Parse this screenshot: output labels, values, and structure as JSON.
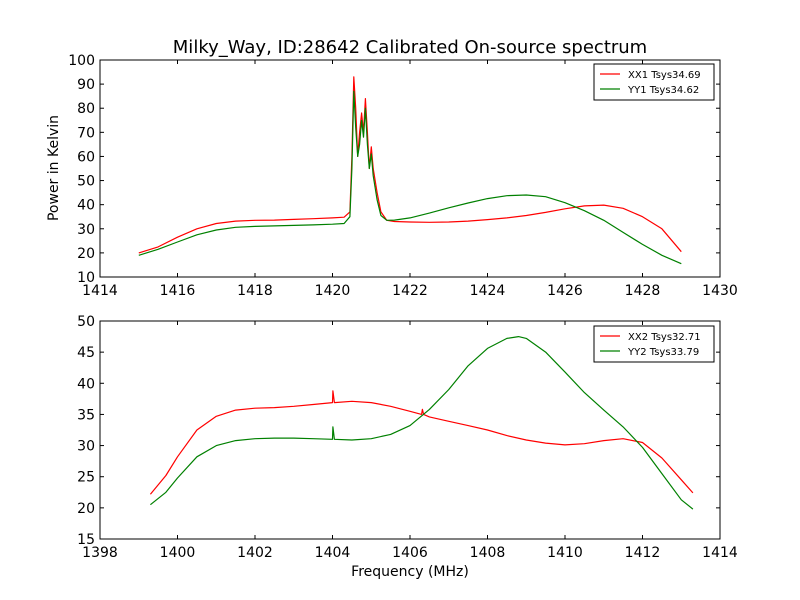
{
  "chart_data": [
    {
      "type": "line",
      "title": "Milky_Way, ID:28642 Calibrated On-source spectrum",
      "xlabel": "",
      "ylabel": "Power in Kelvin",
      "xlim": [
        1414,
        1430
      ],
      "ylim": [
        10,
        100
      ],
      "xticks": [
        1414,
        1416,
        1418,
        1420,
        1422,
        1424,
        1426,
        1428,
        1430
      ],
      "yticks": [
        10,
        20,
        30,
        40,
        50,
        60,
        70,
        80,
        90,
        100
      ],
      "grid": false,
      "legend_position": "top-right",
      "series": [
        {
          "name": "XX1 Tsys34.69",
          "color": "#ff0000",
          "points": [
            [
              1415.0,
              20.0
            ],
            [
              1415.5,
              22.5
            ],
            [
              1416.0,
              26.5
            ],
            [
              1416.5,
              30.0
            ],
            [
              1417.0,
              32.2
            ],
            [
              1417.5,
              33.2
            ],
            [
              1418.0,
              33.5
            ],
            [
              1418.5,
              33.6
            ],
            [
              1419.0,
              33.9
            ],
            [
              1419.5,
              34.2
            ],
            [
              1420.0,
              34.5
            ],
            [
              1420.3,
              34.8
            ],
            [
              1420.45,
              37.0
            ],
            [
              1420.5,
              60.0
            ],
            [
              1420.55,
              93.0
            ],
            [
              1420.6,
              80.0
            ],
            [
              1420.65,
              60.0
            ],
            [
              1420.7,
              70.0
            ],
            [
              1420.75,
              78.0
            ],
            [
              1420.8,
              70.0
            ],
            [
              1420.85,
              84.0
            ],
            [
              1420.9,
              70.0
            ],
            [
              1420.95,
              55.0
            ],
            [
              1421.0,
              64.0
            ],
            [
              1421.05,
              55.0
            ],
            [
              1421.15,
              45.0
            ],
            [
              1421.25,
              37.0
            ],
            [
              1421.4,
              33.5
            ],
            [
              1421.6,
              33.0
            ],
            [
              1422.0,
              32.8
            ],
            [
              1422.5,
              32.7
            ],
            [
              1423.0,
              32.8
            ],
            [
              1423.5,
              33.2
            ],
            [
              1424.0,
              33.8
            ],
            [
              1424.5,
              34.5
            ],
            [
              1425.0,
              35.5
            ],
            [
              1425.5,
              36.8
            ],
            [
              1426.0,
              38.3
            ],
            [
              1426.5,
              39.5
            ],
            [
              1427.0,
              39.8
            ],
            [
              1427.5,
              38.5
            ],
            [
              1428.0,
              35.0
            ],
            [
              1428.5,
              30.0
            ],
            [
              1429.0,
              20.5
            ]
          ]
        },
        {
          "name": "YY1 Tsys34.62",
          "color": "#008000",
          "points": [
            [
              1415.0,
              19.0
            ],
            [
              1415.5,
              21.5
            ],
            [
              1416.0,
              24.5
            ],
            [
              1416.5,
              27.5
            ],
            [
              1417.0,
              29.5
            ],
            [
              1417.5,
              30.6
            ],
            [
              1418.0,
              31.0
            ],
            [
              1418.5,
              31.2
            ],
            [
              1419.0,
              31.4
            ],
            [
              1419.5,
              31.6
            ],
            [
              1420.0,
              31.9
            ],
            [
              1420.3,
              32.2
            ],
            [
              1420.45,
              35.0
            ],
            [
              1420.5,
              55.0
            ],
            [
              1420.55,
              87.0
            ],
            [
              1420.6,
              72.0
            ],
            [
              1420.65,
              60.0
            ],
            [
              1420.7,
              65.0
            ],
            [
              1420.75,
              75.0
            ],
            [
              1420.8,
              68.0
            ],
            [
              1420.85,
              80.0
            ],
            [
              1420.9,
              65.0
            ],
            [
              1420.95,
              55.0
            ],
            [
              1421.0,
              61.0
            ],
            [
              1421.05,
              52.0
            ],
            [
              1421.15,
              42.0
            ],
            [
              1421.25,
              35.5
            ],
            [
              1421.4,
              33.5
            ],
            [
              1421.6,
              33.6
            ],
            [
              1422.0,
              34.5
            ],
            [
              1422.5,
              36.5
            ],
            [
              1423.0,
              38.7
            ],
            [
              1423.5,
              40.7
            ],
            [
              1424.0,
              42.5
            ],
            [
              1424.5,
              43.7
            ],
            [
              1425.0,
              44.0
            ],
            [
              1425.5,
              43.3
            ],
            [
              1426.0,
              40.8
            ],
            [
              1426.5,
              37.5
            ],
            [
              1427.0,
              33.5
            ],
            [
              1427.5,
              28.5
            ],
            [
              1428.0,
              23.5
            ],
            [
              1428.5,
              19.0
            ],
            [
              1429.0,
              15.5
            ]
          ]
        }
      ]
    },
    {
      "type": "line",
      "title": "",
      "xlabel": "Frequency (MHz)",
      "ylabel": "",
      "xlim": [
        1398,
        1414
      ],
      "ylim": [
        15,
        50
      ],
      "xticks": [
        1398,
        1400,
        1402,
        1404,
        1406,
        1408,
        1410,
        1412,
        1414
      ],
      "yticks": [
        15,
        20,
        25,
        30,
        35,
        40,
        45,
        50
      ],
      "grid": false,
      "legend_position": "top-right",
      "series": [
        {
          "name": "XX2 Tsys32.71",
          "color": "#ff0000",
          "points": [
            [
              1399.3,
              22.2
            ],
            [
              1399.7,
              25.2
            ],
            [
              1400.0,
              28.2
            ],
            [
              1400.5,
              32.5
            ],
            [
              1401.0,
              34.7
            ],
            [
              1401.5,
              35.7
            ],
            [
              1402.0,
              36.0
            ],
            [
              1402.5,
              36.1
            ],
            [
              1403.0,
              36.3
            ],
            [
              1403.5,
              36.6
            ],
            [
              1404.0,
              36.9
            ],
            [
              1404.01,
              38.8
            ],
            [
              1404.05,
              36.9
            ],
            [
              1404.5,
              37.1
            ],
            [
              1405.0,
              36.9
            ],
            [
              1405.5,
              36.3
            ],
            [
              1406.0,
              35.5
            ],
            [
              1406.3,
              35.0
            ],
            [
              1406.32,
              35.8
            ],
            [
              1406.35,
              35.0
            ],
            [
              1406.5,
              34.6
            ],
            [
              1407.0,
              33.9
            ],
            [
              1407.5,
              33.2
            ],
            [
              1408.0,
              32.5
            ],
            [
              1408.5,
              31.6
            ],
            [
              1409.0,
              30.9
            ],
            [
              1409.5,
              30.4
            ],
            [
              1410.0,
              30.1
            ],
            [
              1410.5,
              30.3
            ],
            [
              1411.0,
              30.8
            ],
            [
              1411.5,
              31.1
            ],
            [
              1412.0,
              30.5
            ],
            [
              1412.5,
              28.0
            ],
            [
              1413.0,
              24.5
            ],
            [
              1413.3,
              22.4
            ]
          ]
        },
        {
          "name": "YY2 Tsys33.79",
          "color": "#008000",
          "points": [
            [
              1399.3,
              20.5
            ],
            [
              1399.7,
              22.5
            ],
            [
              1400.0,
              24.8
            ],
            [
              1400.5,
              28.2
            ],
            [
              1401.0,
              30.0
            ],
            [
              1401.5,
              30.8
            ],
            [
              1402.0,
              31.1
            ],
            [
              1402.5,
              31.2
            ],
            [
              1403.0,
              31.2
            ],
            [
              1403.5,
              31.1
            ],
            [
              1404.0,
              31.0
            ],
            [
              1404.01,
              33.0
            ],
            [
              1404.05,
              31.0
            ],
            [
              1404.5,
              30.9
            ],
            [
              1405.0,
              31.1
            ],
            [
              1405.5,
              31.8
            ],
            [
              1406.0,
              33.2
            ],
            [
              1406.5,
              35.8
            ],
            [
              1407.0,
              39.0
            ],
            [
              1407.5,
              42.8
            ],
            [
              1408.0,
              45.6
            ],
            [
              1408.5,
              47.2
            ],
            [
              1408.8,
              47.5
            ],
            [
              1409.0,
              47.2
            ],
            [
              1409.5,
              45.0
            ],
            [
              1410.0,
              41.8
            ],
            [
              1410.5,
              38.5
            ],
            [
              1411.0,
              35.7
            ],
            [
              1411.5,
              33.0
            ],
            [
              1412.0,
              29.7
            ],
            [
              1412.5,
              25.5
            ],
            [
              1413.0,
              21.3
            ],
            [
              1413.3,
              19.8
            ]
          ]
        }
      ]
    }
  ]
}
